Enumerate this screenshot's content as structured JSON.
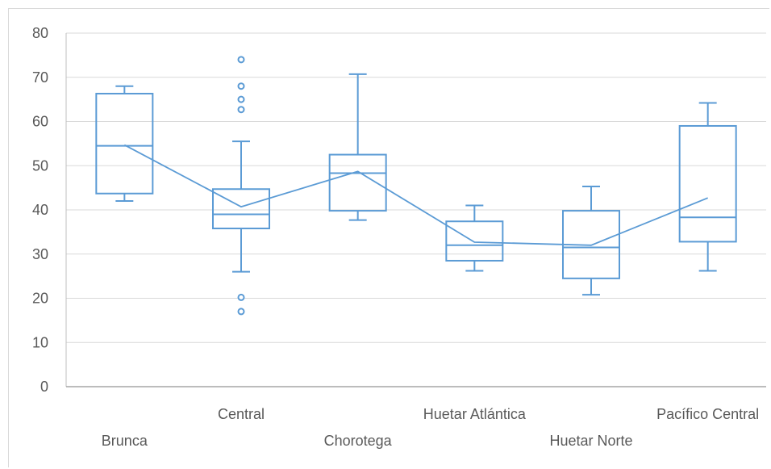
{
  "chart_data": {
    "type": "box",
    "title": "",
    "xlabel": "",
    "ylabel": "",
    "ylim": [
      0,
      80
    ],
    "yticks": [
      0,
      10,
      20,
      30,
      40,
      50,
      60,
      70,
      80
    ],
    "grid": true,
    "legend": "none",
    "categories": [
      "Brunca",
      "Central",
      "Chorotega",
      "Huetar Atlántica",
      "Huetar Norte",
      "Pacífico Central"
    ],
    "label_row": [
      "low",
      "high",
      "low",
      "high",
      "low",
      "high"
    ],
    "boxes": [
      {
        "min": 42.0,
        "q1": 43.7,
        "median": 54.5,
        "q3": 66.3,
        "max": 68.0,
        "mean": 54.7,
        "outliers": []
      },
      {
        "min": 26.0,
        "q1": 35.8,
        "median": 39.0,
        "q3": 44.7,
        "max": 55.5,
        "mean": 40.7,
        "outliers": [
          74.0,
          68.0,
          65.0,
          62.7,
          20.2,
          17.0
        ]
      },
      {
        "min": 37.7,
        "q1": 39.8,
        "median": 48.3,
        "q3": 52.5,
        "max": 70.7,
        "mean": 48.7,
        "outliers": []
      },
      {
        "min": 26.2,
        "q1": 28.5,
        "median": 32.0,
        "q3": 37.4,
        "max": 41.0,
        "mean": 32.7,
        "outliers": []
      },
      {
        "min": 20.8,
        "q1": 24.5,
        "median": 31.5,
        "q3": 39.8,
        "max": 45.3,
        "mean": 32.0,
        "outliers": []
      },
      {
        "min": 26.2,
        "q1": 32.8,
        "median": 38.3,
        "q3": 59.0,
        "max": 64.2,
        "mean": 42.7,
        "outliers": []
      }
    ],
    "colors": {
      "series": "#5b9bd5",
      "grid": "#d9d9d9",
      "axis": "#bfbfbf",
      "text": "#595959"
    }
  }
}
